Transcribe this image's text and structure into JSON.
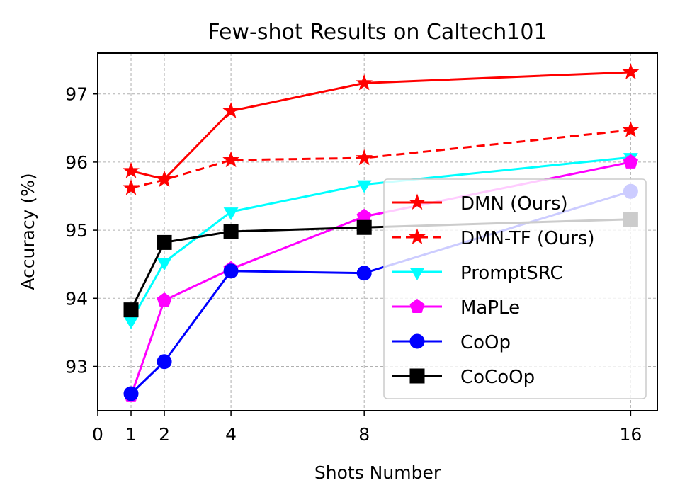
{
  "chart_data": {
    "type": "line",
    "title": "Few-shot Results on Caltech101",
    "xlabel": "Shots Number",
    "ylabel": "Accuracy (%)",
    "x_ticks": [
      0,
      1,
      2,
      4,
      8,
      16
    ],
    "y_ticks": [
      93,
      94,
      95,
      96,
      97
    ],
    "xlim": [
      0,
      16.8
    ],
    "ylim": [
      92.35,
      97.6
    ],
    "grid": true,
    "legend_position": "lower-right",
    "x": [
      1,
      2,
      4,
      8,
      16
    ],
    "series": [
      {
        "name": "DMN (Ours)",
        "values": [
          95.87,
          95.75,
          96.75,
          97.16,
          97.32
        ],
        "color": "#ff0000",
        "marker": "star",
        "dashed": false
      },
      {
        "name": "DMN-TF (Ours)",
        "values": [
          95.62,
          95.74,
          96.03,
          96.06,
          96.47
        ],
        "color": "#ff0000",
        "marker": "star",
        "dashed": true
      },
      {
        "name": "PromptSRC",
        "values": [
          93.67,
          94.53,
          95.27,
          95.67,
          96.07
        ],
        "color": "#00ffff",
        "marker": "triangle-down",
        "dashed": false
      },
      {
        "name": "MaPLe",
        "values": [
          92.57,
          93.97,
          94.43,
          95.2,
          96.0
        ],
        "color": "#ff00ff",
        "marker": "pentagon",
        "dashed": false
      },
      {
        "name": "CoOp",
        "values": [
          92.6,
          93.07,
          94.4,
          94.37,
          95.57
        ],
        "color": "#0000ff",
        "marker": "circle",
        "dashed": false
      },
      {
        "name": "CoCoOp",
        "values": [
          93.83,
          94.82,
          94.98,
          95.04,
          95.16
        ],
        "color": "#000000",
        "marker": "square",
        "dashed": false
      }
    ]
  }
}
